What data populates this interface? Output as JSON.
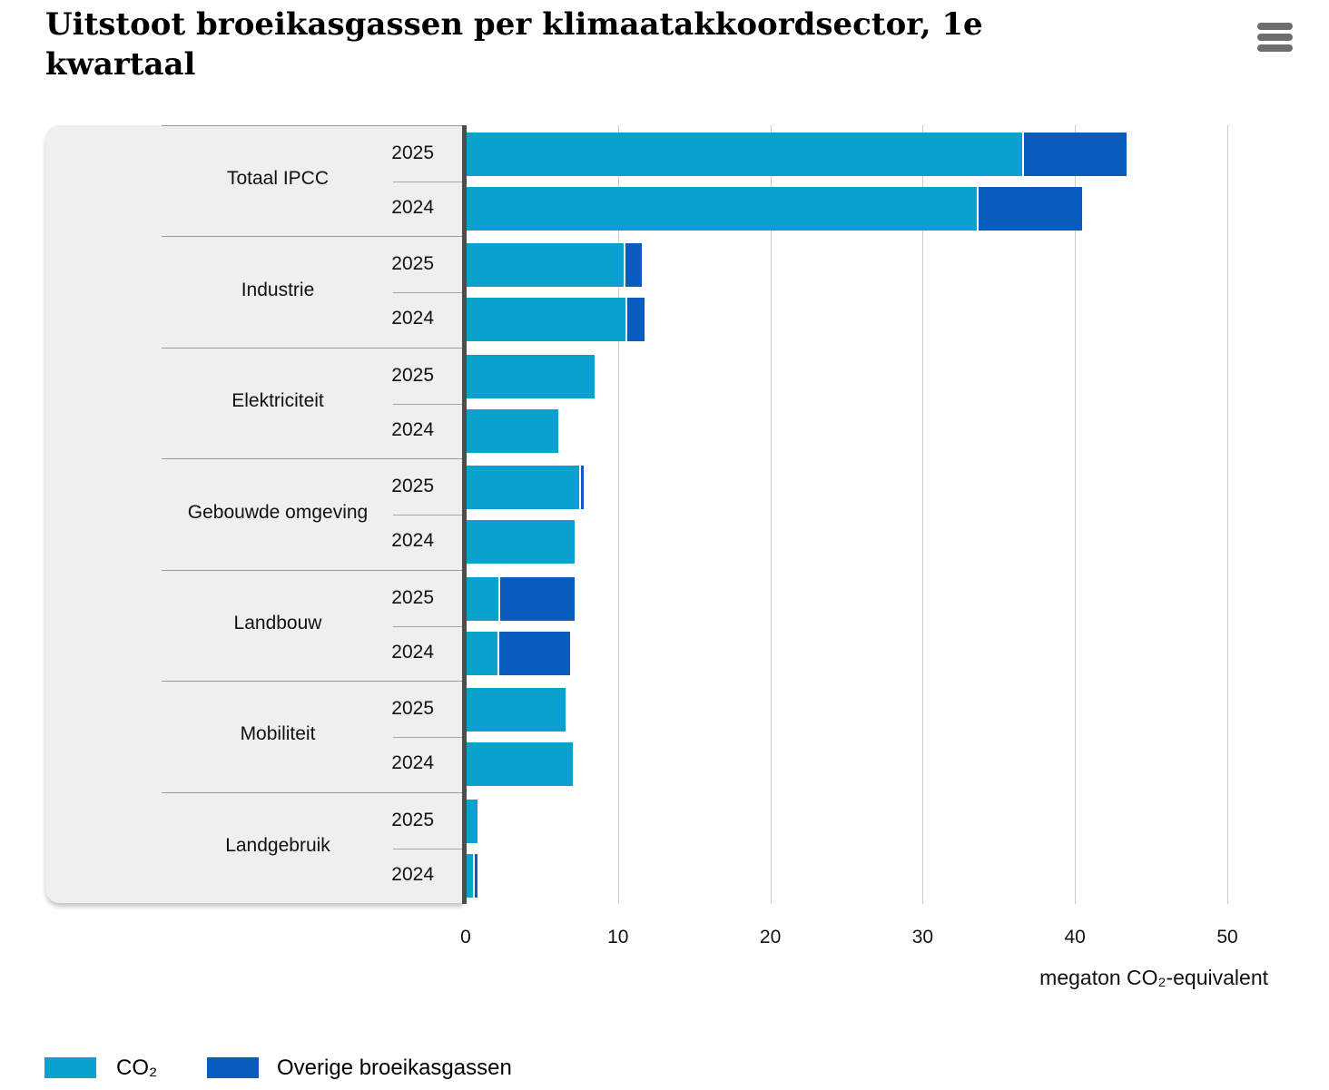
{
  "header": {
    "title": "Uitstoot broeikasgassen per klimaatakkoordsector, 1e kwartaal"
  },
  "chart_data": {
    "type": "bar",
    "orientation": "horizontal",
    "stacked": true,
    "title": "Uitstoot broeikasgassen per klimaatakkoordsector, 1e kwartaal",
    "xlabel": "megaton CO₂-equivalent",
    "xlim": [
      0,
      52
    ],
    "xticks": [
      "0",
      "10",
      "20",
      "30",
      "40",
      "50"
    ],
    "xtick_values": [
      0,
      10,
      20,
      30,
      40,
      50
    ],
    "grid": "vertical",
    "legend_position": "bottom",
    "series": [
      {
        "name": "CO₂",
        "color": "#0ba1ce"
      },
      {
        "name": "Overige broeikasgassen",
        "color": "#0a5cbe"
      }
    ],
    "groups": [
      {
        "sector": "Totaal IPCC",
        "bars": [
          {
            "year": "2025",
            "co2": 36.5,
            "other": 6.8
          },
          {
            "year": "2024",
            "co2": 33.5,
            "other": 6.9
          }
        ]
      },
      {
        "sector": "Industrie",
        "bars": [
          {
            "year": "2025",
            "co2": 10.3,
            "other": 1.2
          },
          {
            "year": "2024",
            "co2": 10.4,
            "other": 1.3
          }
        ]
      },
      {
        "sector": "Elektriciteit",
        "bars": [
          {
            "year": "2025",
            "co2": 8.4,
            "other": 0
          },
          {
            "year": "2024",
            "co2": 6.0,
            "other": 0
          }
        ]
      },
      {
        "sector": "Gebouwde omgeving",
        "bars": [
          {
            "year": "2025",
            "co2": 7.4,
            "other": 0.3
          },
          {
            "year": "2024",
            "co2": 7.1,
            "other": 0
          }
        ]
      },
      {
        "sector": "Landbouw",
        "bars": [
          {
            "year": "2025",
            "co2": 2.1,
            "other": 5.0
          },
          {
            "year": "2024",
            "co2": 2.0,
            "other": 4.8
          }
        ]
      },
      {
        "sector": "Mobiliteit",
        "bars": [
          {
            "year": "2025",
            "co2": 6.5,
            "other": 0
          },
          {
            "year": "2024",
            "co2": 7.0,
            "other": 0
          }
        ]
      },
      {
        "sector": "Landgebruik",
        "bars": [
          {
            "year": "2025",
            "co2": 0.7,
            "other": 0
          },
          {
            "year": "2024",
            "co2": 0.4,
            "other": 0.3
          }
        ]
      }
    ]
  },
  "colors": {
    "co2": "#0ba1ce",
    "other": "#0a5cbe",
    "panel": "#efefef",
    "axis_line": "#4d4d4d",
    "gridline": "#cccccc",
    "separator": "#999999",
    "text": "#111111",
    "menu": "#6e6e6e",
    "logo": "#9e9e9e"
  }
}
